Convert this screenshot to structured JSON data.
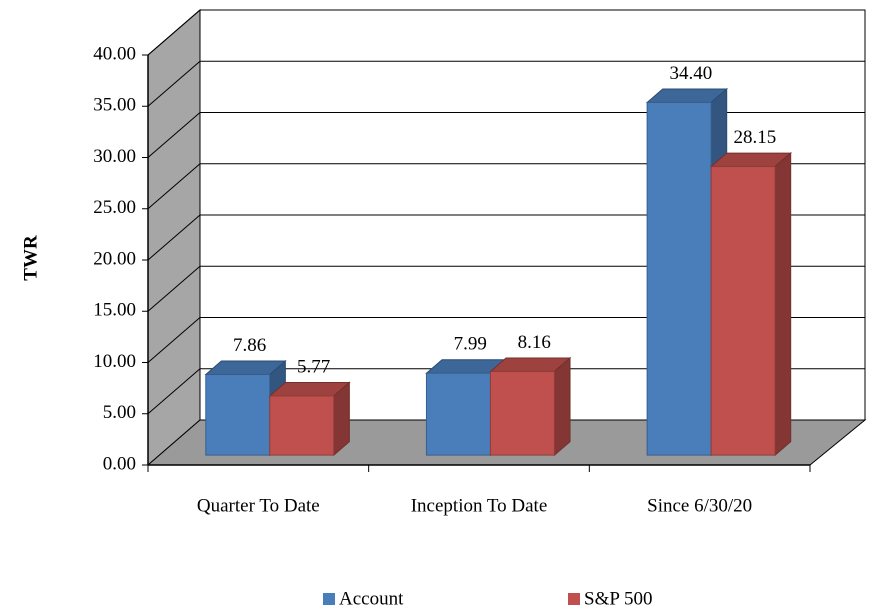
{
  "chart_data": {
    "type": "bar3d",
    "y_label": "TWR",
    "categories": [
      "Quarter To Date",
      "Inception To Date",
      "Since 6/30/20"
    ],
    "series": [
      {
        "name": "Account",
        "color": "#4a7ebb",
        "values": [
          7.86,
          7.99,
          34.4
        ],
        "value_labels": [
          "7.86",
          "7.99",
          "34.40"
        ]
      },
      {
        "name": "S&P 500",
        "color": "#c0504d",
        "values": [
          5.77,
          8.16,
          28.15
        ],
        "value_labels": [
          "5.77",
          "8.16",
          "28.15"
        ]
      }
    ],
    "ylim": [
      0,
      40
    ],
    "yticks": [
      {
        "value": 0,
        "label": "0.00"
      },
      {
        "value": 5,
        "label": "5.00"
      },
      {
        "value": 10,
        "label": "10.00"
      },
      {
        "value": 15,
        "label": "15.00"
      },
      {
        "value": 20,
        "label": "20.00"
      },
      {
        "value": 25,
        "label": "25.00"
      },
      {
        "value": 30,
        "label": "30.00"
      },
      {
        "value": 35,
        "label": "35.00"
      },
      {
        "value": 40,
        "label": "40.00"
      }
    ],
    "grid": true,
    "legend": "bottom"
  }
}
